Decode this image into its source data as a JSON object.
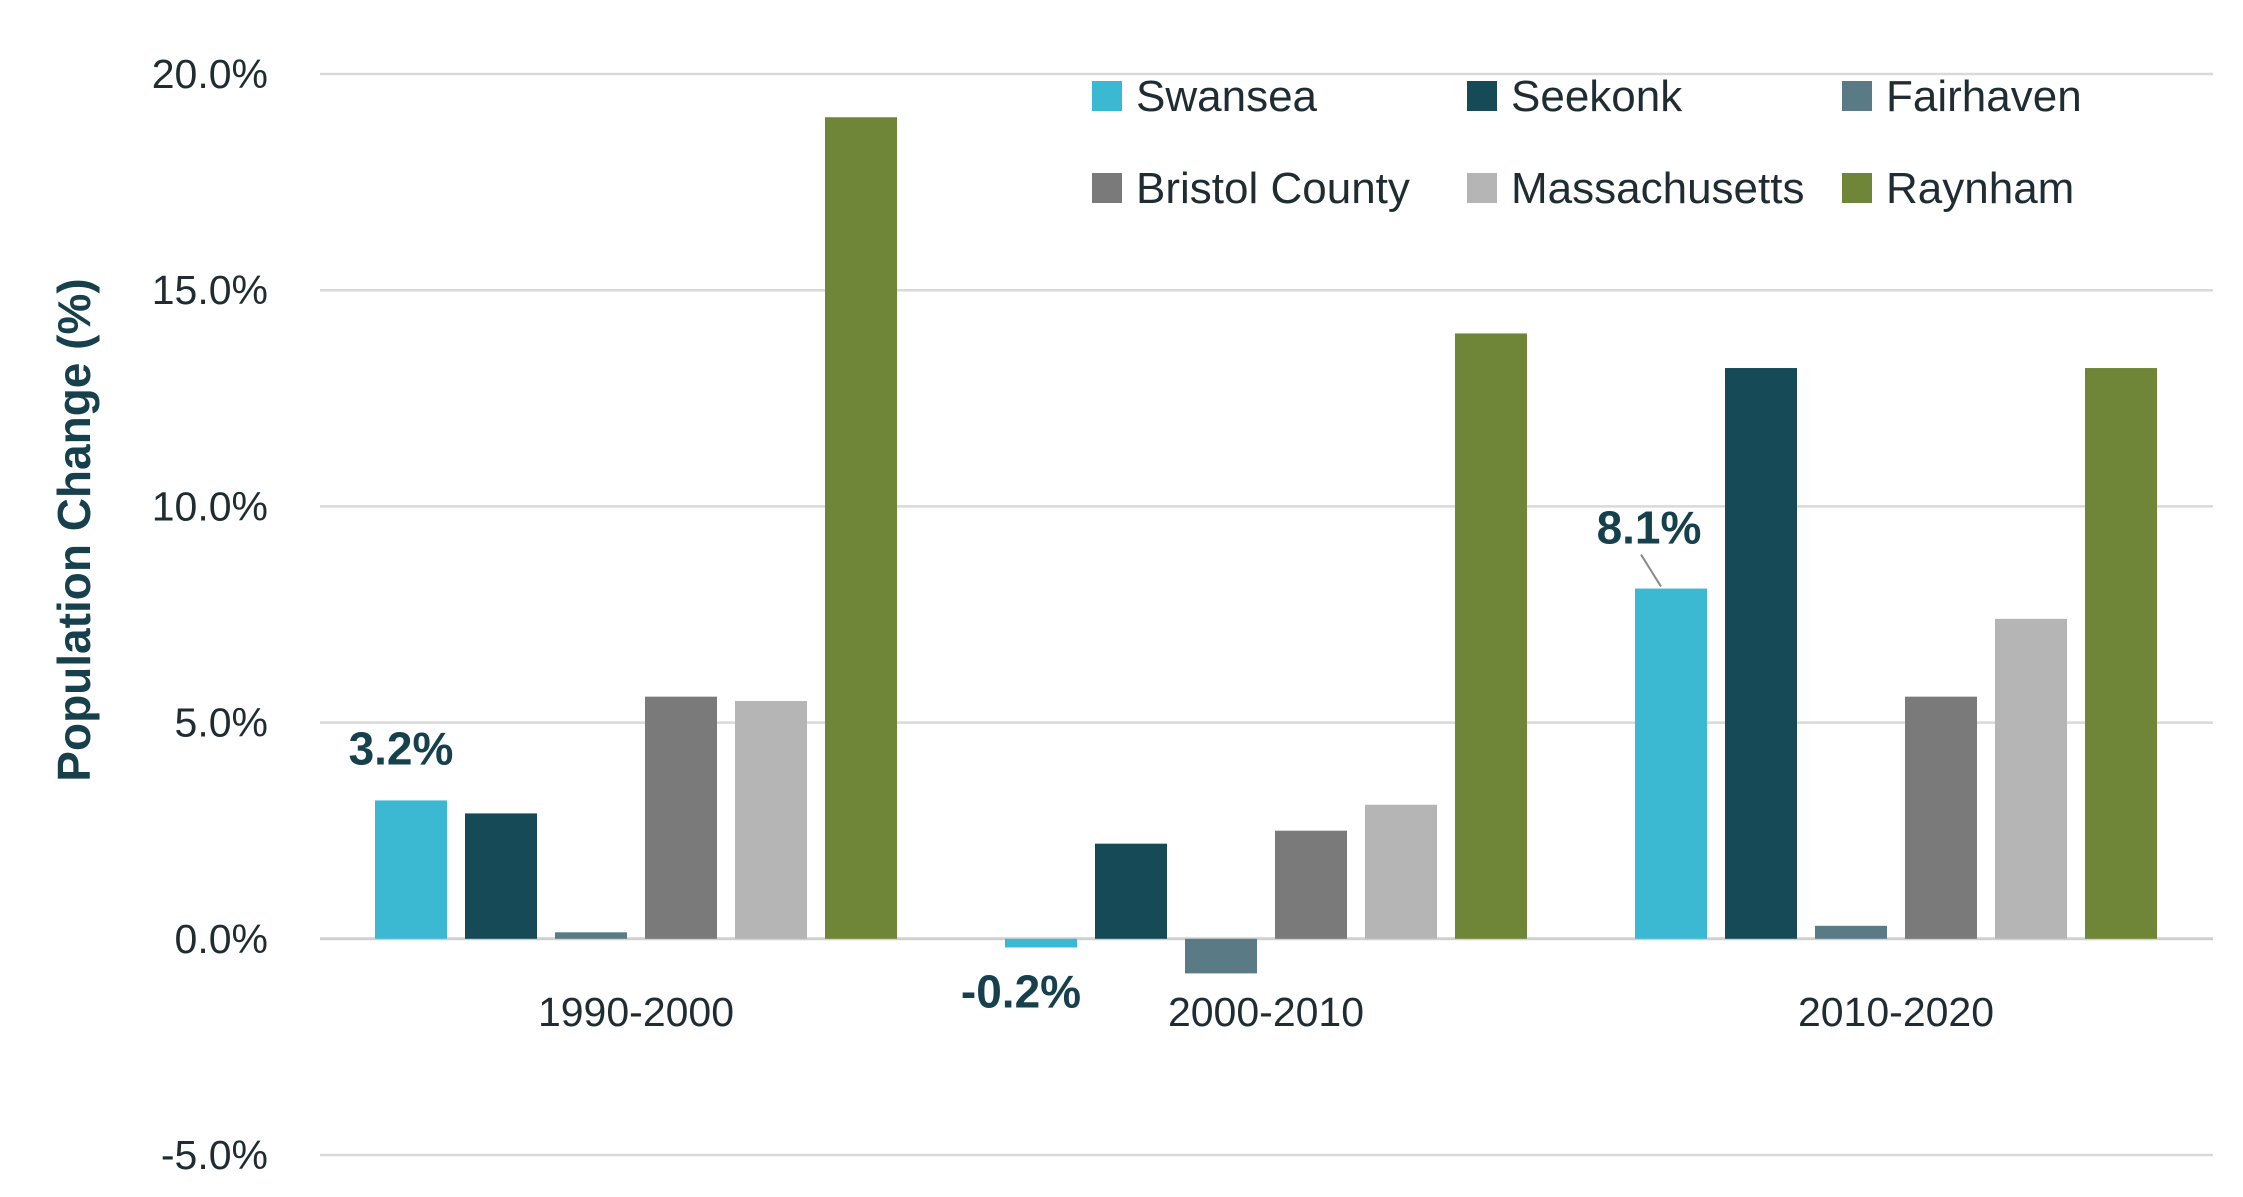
{
  "chart_data": {
    "type": "bar",
    "title": "",
    "xlabel": "",
    "ylabel": "Population Change (%)",
    "categories": [
      "1990-2000",
      "2000-2010",
      "2010-2020"
    ],
    "ylim": [
      -5.0,
      20.0
    ],
    "yticks": [
      "20.0%",
      "15.0%",
      "10.0%",
      "5.0%",
      "0.0%",
      "-5.0%"
    ],
    "ytick_values": [
      20,
      15,
      10,
      5,
      0,
      -5
    ],
    "grid": true,
    "legend_position": "top-right",
    "series": [
      {
        "name": "Swansea",
        "color": "#3bb8d2",
        "values": [
          3.2,
          -0.2,
          8.1
        ]
      },
      {
        "name": "Seekonk",
        "color": "#164a56",
        "values": [
          2.9,
          2.2,
          13.2
        ]
      },
      {
        "name": "Fairhaven",
        "color": "#5a7b85",
        "values": [
          0.15,
          -0.8,
          0.3
        ]
      },
      {
        "name": "Bristol County",
        "color": "#7a7a7a",
        "values": [
          5.6,
          2.5,
          5.6
        ]
      },
      {
        "name": "Massachusetts",
        "color": "#b5b5b5",
        "values": [
          5.5,
          3.1,
          7.4
        ]
      },
      {
        "name": "Raynham",
        "color": "#6f8639",
        "values": [
          19.0,
          14.0,
          13.2
        ]
      }
    ],
    "annotations": [
      {
        "text": "3.2%",
        "series": "Swansea",
        "category": "1990-2000"
      },
      {
        "text": "-0.2%",
        "series": "Swansea",
        "category": "2000-2010"
      },
      {
        "text": "8.1%",
        "series": "Swansea",
        "category": "2010-2020"
      }
    ]
  }
}
